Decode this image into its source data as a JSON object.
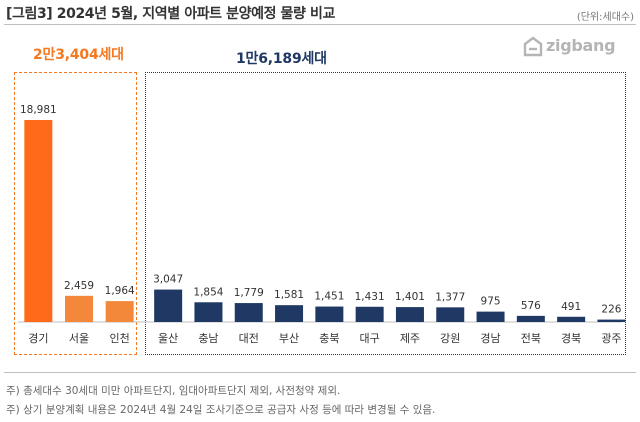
{
  "header": {
    "title": "[그림3] 2024년 5월, 지역별 아파트 분양예정 물량 비교",
    "unit": "(단위:세대수)"
  },
  "brand": {
    "name": "zigbang",
    "color": "#b5b5b5"
  },
  "groups": [
    {
      "label": "2만3,404세대",
      "color": "#f47920"
    },
    {
      "label": "1만6,189세대",
      "color": "#1f3864"
    }
  ],
  "chart_data": {
    "type": "bar",
    "categories": [
      "경기",
      "서울",
      "인천",
      "울산",
      "충남",
      "대전",
      "부산",
      "충북",
      "대구",
      "제주",
      "강원",
      "경남",
      "전북",
      "경북",
      "광주"
    ],
    "values": [
      18981,
      2459,
      1964,
      3047,
      1854,
      1779,
      1581,
      1451,
      1431,
      1401,
      1377,
      975,
      576,
      491,
      226
    ],
    "value_labels": [
      "18,981",
      "2,459",
      "1,964",
      "3,047",
      "1,854",
      "1,779",
      "1,581",
      "1,451",
      "1,431",
      "1,401",
      "1,377",
      "975",
      "576",
      "491",
      "226"
    ],
    "colors": [
      "#fe6a1a",
      "#f4883a",
      "#f4883a",
      "#1f3864",
      "#1f3864",
      "#1f3864",
      "#1f3864",
      "#1f3864",
      "#1f3864",
      "#1f3864",
      "#1f3864",
      "#1f3864",
      "#1f3864",
      "#1f3864",
      "#1f3864"
    ],
    "ylim": [
      0,
      18981
    ],
    "grid": false,
    "legend": "none"
  },
  "notes": [
    "주) 총세대수 30세대 미만 아파트단지, 임대아파트단지 제외, 사전청약 제외.",
    "주) 상기 분양계획 내용은 2024년 4월 24일 조사기준으로 공급자 사정 등에 따라 변경될 수 있음."
  ]
}
